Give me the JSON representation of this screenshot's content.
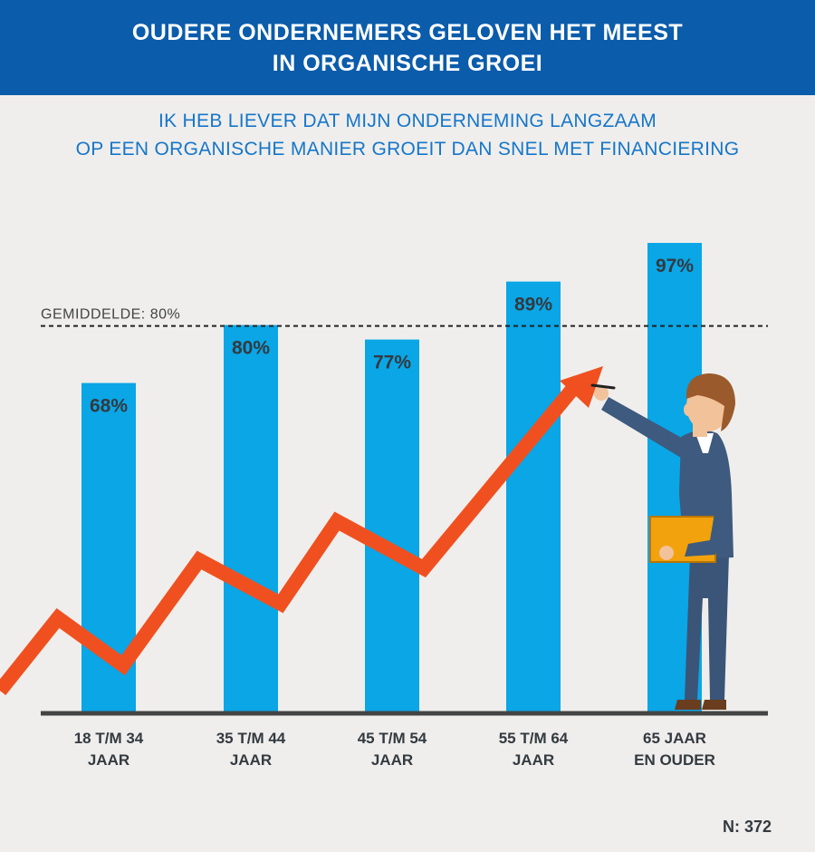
{
  "header": {
    "title_line1": "OUDERE ONDERNEMERS GELOVEN HET MEEST",
    "title_line2": "IN ORGANISCHE GROEI"
  },
  "subtitle": {
    "line1": "IK HEB LIEVER DAT MIJN ONDERNEMING LANGZAAM",
    "line2": "OP EEN ORGANISCHE MANIER GROEIT DAN SNEL MET FINANCIERING"
  },
  "average": {
    "label": "GEMIDDELDE: 80%",
    "value": 80
  },
  "sample": "N: 372",
  "colors": {
    "header_bg": "#0b5cab",
    "bar": "#0aa6e6",
    "subtitle": "#1676c9",
    "arrow": "#f0501f",
    "label": "#333a40"
  },
  "illustration": {
    "icon": "businessman-drawing-arrow-icon"
  },
  "chart_data": {
    "type": "bar",
    "categories": [
      [
        "18 T/M 34",
        "JAAR"
      ],
      [
        "35 T/M 44",
        "JAAR"
      ],
      [
        "45 T/M 54",
        "JAAR"
      ],
      [
        "55 T/M 64",
        "JAAR"
      ],
      [
        "65 JAAR",
        "EN OUDER"
      ]
    ],
    "values": [
      68,
      80,
      77,
      89,
      97
    ],
    "value_labels": [
      "68%",
      "80%",
      "77%",
      "89%",
      "97%"
    ],
    "reference_line": 80,
    "grid": false
  }
}
